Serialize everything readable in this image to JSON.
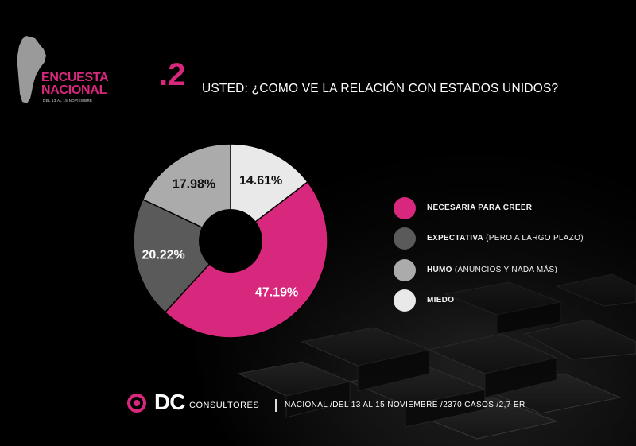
{
  "header": {
    "brand_line1": "ENCUESTA",
    "brand_line2": "NACIONAL",
    "brand_date": "DEL 13 AL 15 NOVIEMBRE",
    "question_number": ".2",
    "question_text": "USTED: ¿COMO VE LA RELACIÓN CON ESTADOS UNIDOS?"
  },
  "colors": {
    "accent": "#d8287e",
    "background": "#000000"
  },
  "chart_data": {
    "type": "pie",
    "donut": true,
    "slices": [
      {
        "label": "NECESARIA PARA CREER",
        "value": 47.19,
        "display": "47.19%",
        "color": "#d8287e"
      },
      {
        "label": "EXPECTATIVA (PERO A LARGO PLAZO)",
        "value": 20.22,
        "display": "20.22%",
        "color": "#5a5a5a"
      },
      {
        "label": "HUMO (ANUNCIOS Y NADA MÁS)",
        "value": 17.98,
        "display": "17.98%",
        "color": "#ababab"
      },
      {
        "label": "MIEDO",
        "value": 14.61,
        "display": "14.61%",
        "color": "#e9e9e9"
      }
    ],
    "legend": {
      "position": "right",
      "items": [
        {
          "bold": "NECESARIA PARA CREER",
          "rest": "",
          "color": "#d8287e"
        },
        {
          "bold": "EXPECTATIVA",
          "rest": " (PERO A LARGO PLAZO)",
          "color": "#5a5a5a"
        },
        {
          "bold": "HUMO",
          "rest": " (ANUNCIOS Y NADA MÁS)",
          "color": "#ababab"
        },
        {
          "bold": "MIEDO",
          "rest": "",
          "color": "#e9e9e9"
        }
      ]
    }
  },
  "footer": {
    "logo_letters": "DC",
    "logo_word": "CONSULTORES",
    "info": "NACIONAL /DEL 13 AL 15 NOVIEMBRE /2370 CASOS /2,7 ER"
  }
}
